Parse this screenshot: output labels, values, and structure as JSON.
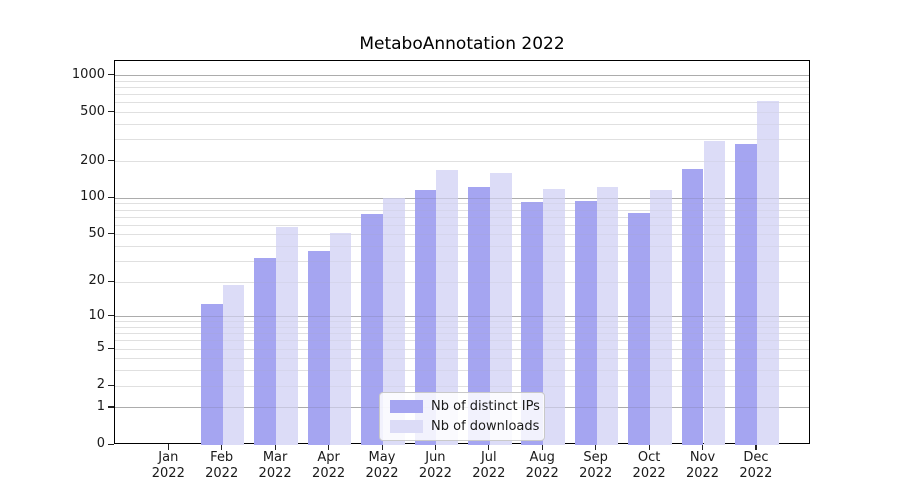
{
  "title": "MetaboAnnotation 2022",
  "colors": {
    "distinct_ips": "#a5a5f1",
    "downloads": "#dcdcf7",
    "major_grid": "#bdbdbd",
    "minor_grid": "#e9e9e9",
    "spine": "#000000",
    "text": "#1a1a1a"
  },
  "x_axis": {
    "months": [
      "Jan",
      "Feb",
      "Mar",
      "Apr",
      "May",
      "Jun",
      "Jul",
      "Aug",
      "Sep",
      "Oct",
      "Nov",
      "Dec"
    ],
    "year": "2022"
  },
  "y_axis": {
    "tick_labels": [
      "0",
      "1",
      "2",
      "5",
      "10",
      "20",
      "50",
      "100",
      "200",
      "500",
      "1000"
    ],
    "scale": "log(1+y)"
  },
  "legend": {
    "position": "lower center",
    "entries": [
      {
        "label": "Nb of distinct IPs",
        "series_key": "distinct_ips"
      },
      {
        "label": "Nb of downloads",
        "series_key": "downloads"
      }
    ]
  },
  "chart_data": {
    "type": "bar",
    "title": "MetaboAnnotation 2022",
    "categories": [
      "Jan 2022",
      "Feb 2022",
      "Mar 2022",
      "Apr 2022",
      "May 2022",
      "Jun 2022",
      "Jul 2022",
      "Aug 2022",
      "Sep 2022",
      "Oct 2022",
      "Nov 2022",
      "Dec 2022"
    ],
    "series": [
      {
        "name": "Nb of distinct IPs",
        "key": "distinct_ips",
        "color": "#a5a5f1",
        "values": [
          0,
          13,
          32,
          37,
          75,
          117,
          123,
          94,
          95,
          76,
          175,
          278
        ]
      },
      {
        "name": "Nb of downloads",
        "key": "downloads",
        "color": "#dcdcf7",
        "values": [
          0,
          19,
          58,
          52,
          100,
          170,
          161,
          119,
          125,
          118,
          293,
          623
        ]
      }
    ],
    "xlabel": "",
    "ylabel": "",
    "yscale": "log1p",
    "ylim": [
      0,
      1310
    ],
    "y_ticks": [
      0,
      1,
      2,
      5,
      10,
      20,
      50,
      100,
      200,
      500,
      1000
    ],
    "major_gridlines": [
      1,
      10,
      100,
      1000
    ],
    "minor_gridlines": [
      2,
      3,
      4,
      5,
      6,
      7,
      8,
      9,
      20,
      30,
      40,
      50,
      60,
      70,
      80,
      90,
      200,
      300,
      400,
      500,
      600,
      700,
      800,
      900
    ],
    "grid": true,
    "legend_position": "lower center"
  }
}
